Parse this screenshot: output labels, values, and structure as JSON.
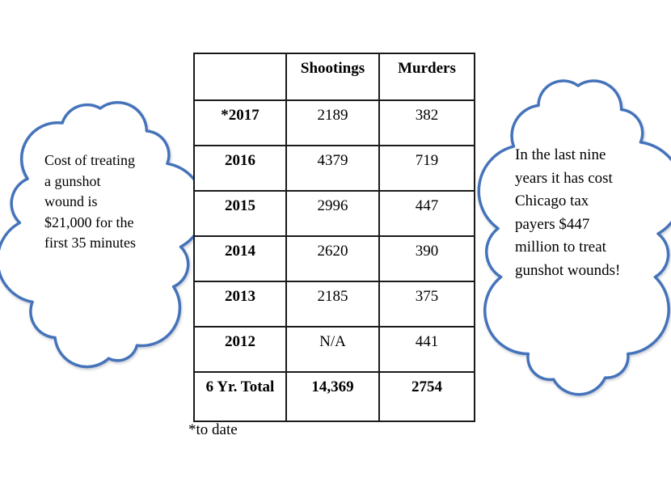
{
  "colors": {
    "background": "#ffffff",
    "cloud_stroke": "#4573BA",
    "cloud_fill": "#ffffff",
    "table_border": "#1a1a1a",
    "text": "#000000"
  },
  "left_callout": {
    "text": "Cost of treating\na gunshot\nwound is\n$21,000 for the\nfirst 35 minutes"
  },
  "right_callout": {
    "text": "In the last nine\nyears it has cost\nChicago tax\npayers $447\nmillion to treat\ngunshot wounds!"
  },
  "table": {
    "columns": [
      "",
      "Shootings",
      "Murders"
    ],
    "rows": [
      {
        "label": "*2017",
        "shootings": "2189",
        "murders": "382"
      },
      {
        "label": "2016",
        "shootings": "4379",
        "murders": "719"
      },
      {
        "label": "2015",
        "shootings": "2996",
        "murders": "447"
      },
      {
        "label": "2014",
        "shootings": "2620",
        "murders": "390"
      },
      {
        "label": "2013",
        "shootings": "2185",
        "murders": "375"
      },
      {
        "label": "2012",
        "shootings": "N/A",
        "murders": "441"
      },
      {
        "label": "6 Yr. Total",
        "shootings": "14,369",
        "murders": "2754",
        "total": true
      }
    ],
    "footnote": "*to date"
  },
  "chart_data": {
    "type": "table",
    "title": "",
    "categories": [
      "*2017",
      "2016",
      "2015",
      "2014",
      "2013",
      "2012",
      "6 Yr. Total"
    ],
    "series": [
      {
        "name": "Shootings",
        "values": [
          "2189",
          "4379",
          "2996",
          "2620",
          "2185",
          "N/A",
          "14,369"
        ]
      },
      {
        "name": "Murders",
        "values": [
          "382",
          "719",
          "447",
          "390",
          "375",
          "441",
          "2754"
        ]
      }
    ],
    "annotations": [
      "*to date",
      "Cost of treating a gunshot wound is $21,000 for the first 35 minutes",
      "In the last nine years it has cost Chicago tax payers $447 million to treat gunshot wounds!"
    ],
    "layout_hints": {
      "grid": "full cell borders",
      "header_row": true,
      "totals_row": true
    }
  }
}
